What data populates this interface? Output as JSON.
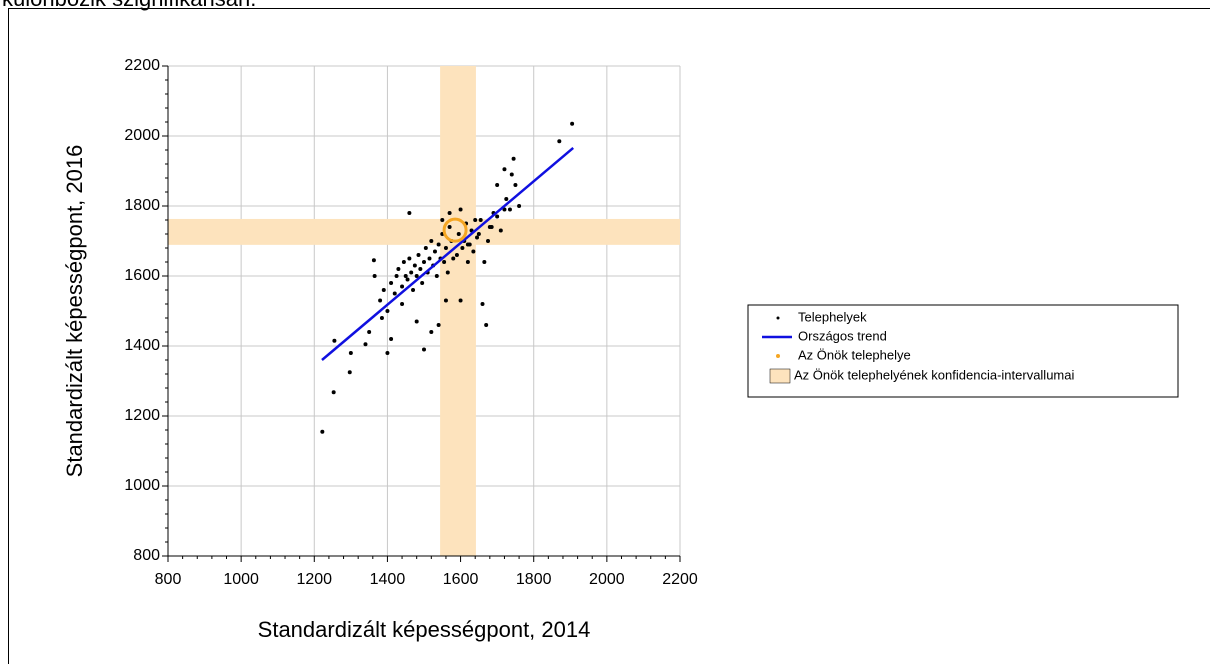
{
  "page_text": "különbözik szignifikánsan.",
  "chart_data": {
    "type": "scatter",
    "x_label": "Standardizált képességpont, 2014",
    "y_label": "Standardizált képességpont, 2016",
    "xlim": [
      800,
      2200
    ],
    "ylim": [
      800,
      2200
    ],
    "xticks": [
      800,
      1000,
      1200,
      1400,
      1600,
      1800,
      2000,
      2200
    ],
    "yticks": [
      800,
      1000,
      1200,
      1400,
      1600,
      1800,
      2000,
      2200
    ],
    "grid": true,
    "legend": "right",
    "band": {
      "name": "Az Önök telephelyének konfidencia-intervallumai",
      "color": "#fde3bd",
      "x": [
        1544,
        1642
      ],
      "y": [
        1689,
        1763
      ]
    },
    "series": [
      {
        "name": "Telephelyek",
        "color": "#000000",
        "x": [
          1222,
          1253,
          1255,
          1297,
          1300,
          1340,
          1350,
          1363,
          1365,
          1385,
          1400,
          1410,
          1440,
          1460,
          1500,
          1480,
          1600,
          1620,
          1660,
          1670,
          1560,
          1540,
          1520,
          1870,
          1905,
          1745,
          1740,
          1720,
          1750,
          1700,
          1760,
          1720,
          1690,
          1680,
          1650,
          1640,
          1600,
          1570,
          1550,
          1580,
          1620,
          1610,
          1380,
          1390,
          1400,
          1410,
          1420,
          1425,
          1430,
          1440,
          1445,
          1450,
          1455,
          1460,
          1465,
          1470,
          1475,
          1480,
          1485,
          1490,
          1495,
          1500,
          1505,
          1510,
          1515,
          1520,
          1525,
          1530,
          1535,
          1540,
          1545,
          1550,
          1555,
          1560,
          1565,
          1570,
          1575,
          1590,
          1595,
          1605,
          1615,
          1625,
          1630,
          1635,
          1645,
          1655,
          1665,
          1675,
          1685,
          1700,
          1710,
          1725,
          1735
        ],
        "values": [
          1155,
          1268,
          1415,
          1325,
          1380,
          1405,
          1440,
          1645,
          1600,
          1480,
          1380,
          1420,
          1520,
          1780,
          1390,
          1470,
          1530,
          1690,
          1520,
          1460,
          1530,
          1460,
          1440,
          1985,
          2035,
          1935,
          1890,
          1905,
          1860,
          1860,
          1800,
          1790,
          1780,
          1740,
          1720,
          1760,
          1790,
          1780,
          1760,
          1650,
          1640,
          1700,
          1530,
          1560,
          1500,
          1580,
          1550,
          1600,
          1620,
          1570,
          1640,
          1600,
          1590,
          1650,
          1610,
          1560,
          1630,
          1600,
          1660,
          1620,
          1580,
          1640,
          1680,
          1610,
          1650,
          1700,
          1630,
          1670,
          1600,
          1690,
          1650,
          1720,
          1640,
          1680,
          1610,
          1740,
          1700,
          1660,
          1720,
          1680,
          1750,
          1690,
          1730,
          1670,
          1710,
          1760,
          1640,
          1700,
          1740,
          1770,
          1730,
          1820,
          1790
        ]
      },
      {
        "name": "Országos trend",
        "color": "#1010e0",
        "x": [
          1221,
          1908
        ],
        "values": [
          1360,
          1966
        ]
      },
      {
        "name": "Az Önök telephelye",
        "color": "#f5a623",
        "x": [
          1585
        ],
        "values": [
          1731
        ]
      }
    ]
  }
}
